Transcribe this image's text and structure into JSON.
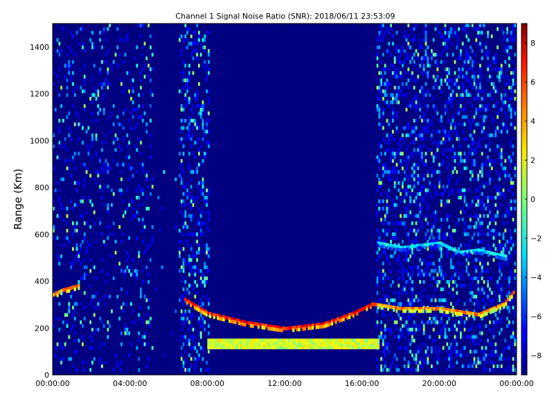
{
  "chart_data": {
    "type": "heatmap",
    "title": "Channel 1 Signal Noise Ratio (SNR): 2018/06/11 23:53:09",
    "xlabel": "",
    "ylabel": "Range (Km)",
    "x_tick_labels": [
      "00:00:00",
      "04:00:00",
      "08:00:00",
      "12:00:00",
      "16:00:00",
      "20:00:00",
      "00:00:00"
    ],
    "x_ticks_hours": [
      0,
      4,
      8,
      12,
      16,
      20,
      24
    ],
    "xlim_hours": [
      0,
      24
    ],
    "y_ticks": [
      0,
      200,
      400,
      600,
      800,
      1000,
      1200,
      1400
    ],
    "ylim": [
      0,
      1500
    ],
    "colorbar": {
      "colormap": "jet",
      "range": [
        -9,
        9
      ],
      "ticks": [
        8,
        6,
        4,
        2,
        0,
        -2,
        -4,
        -6,
        -8
      ],
      "tick_labels": [
        "8",
        "6",
        "4",
        "2",
        "0",
        "−2",
        "−4",
        "−6",
        "−8"
      ]
    },
    "grid": false,
    "background_snr": -9,
    "features": [
      {
        "name": "reflection_trace_day",
        "hours": [
          6.8,
          8,
          10,
          12,
          14,
          15.5,
          16.5
        ],
        "range_km": [
          320,
          260,
          220,
          195,
          215,
          260,
          300
        ],
        "snr": 8
      },
      {
        "name": "reflection_trace_night",
        "hours": [
          16.5,
          18,
          20,
          22,
          23.3,
          23.9
        ],
        "range_km": [
          300,
          280,
          280,
          255,
          300,
          360
        ],
        "snr": 6
      },
      {
        "name": "ground_echo_band",
        "hours": [
          8,
          16.8
        ],
        "range_km": [
          115,
          150
        ],
        "snr": 2
      },
      {
        "name": "upper_trace",
        "hours": [
          16.8,
          18,
          20,
          21,
          22,
          23.5
        ],
        "range_km": [
          560,
          540,
          560,
          520,
          530,
          500
        ],
        "snr": -1
      },
      {
        "name": "early_trace",
        "hours": [
          0,
          0.5,
          1.4
        ],
        "range_km": [
          340,
          360,
          380
        ],
        "snr": 6
      }
    ]
  }
}
